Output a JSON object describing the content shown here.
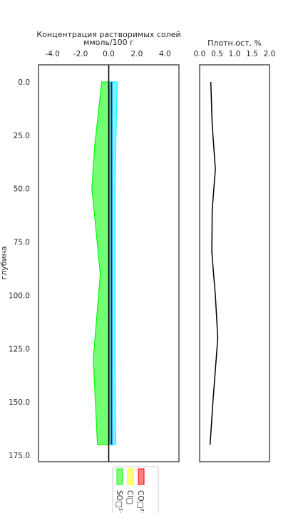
{
  "chart_data": [
    {
      "type": "area",
      "title": "Концентрация растворимых солей",
      "xlabel": "ммоль/100 г",
      "ylabel": "глубина",
      "x_axis_position": "top",
      "xlim": [
        -5.0,
        5.0
      ],
      "ylim": [
        178.0,
        -8.0
      ],
      "y_inverted": true,
      "xticks": [
        -4.0,
        -2.0,
        0.0,
        2.0,
        4.0
      ],
      "xtick_labels": [
        "-4.0",
        "-2.0",
        "0.0",
        "2.0",
        "4.0"
      ],
      "yticks": [
        0.0,
        25.0,
        50.0,
        75.0,
        100.0,
        125.0,
        150.0,
        175.0
      ],
      "ytick_labels": [
        "0.0",
        "25.0",
        "50.0",
        "75.0",
        "100.0",
        "125.0",
        "150.0",
        "175.0"
      ],
      "depth": [
        0,
        30,
        50,
        90,
        130,
        170
      ],
      "series": [
        {
          "name": "SO□²⁻□",
          "color": "#00ff00",
          "kind": "negative_fill",
          "values": [
            -0.5,
            -1.0,
            -1.2,
            -0.6,
            -1.1,
            -0.8
          ]
        },
        {
          "name": "Cl□",
          "color": "#ffff00",
          "kind": "thin_fill",
          "values": [
            0.1,
            0.1,
            0.1,
            0.1,
            0.1,
            0.1
          ]
        },
        {
          "name": "CO□²⁻",
          "color": "#ff0000",
          "kind": "thin_fill",
          "values": [
            0.05,
            0.05,
            0.05,
            0.05,
            0.05,
            0.05
          ]
        },
        {
          "name": "",
          "color": "#00ffff",
          "kind": "positive_fill",
          "values": [
            0.6,
            0.5,
            0.45,
            0.45,
            0.45,
            0.5
          ]
        },
        {
          "name": "",
          "color": "#0000ff",
          "kind": "line",
          "values": [
            0.2,
            0.2,
            0.2,
            0.2,
            0.2,
            0.2
          ]
        }
      ],
      "zero_line": true,
      "grid": false,
      "legend": {
        "placement": "bottom",
        "entries": [
          "SO□²⁻□",
          "Cl□",
          "CO□²⁻"
        ]
      }
    },
    {
      "type": "line",
      "title": "Плотн.ост, %",
      "x_axis_position": "top",
      "xlim": [
        0.0,
        2.0
      ],
      "xticks": [
        0.0,
        0.5,
        1.0,
        1.5,
        2.0
      ],
      "xtick_labels": [
        "0.0",
        "0.5",
        "1.0",
        "1.5",
        "2.0"
      ],
      "ylim": [
        178.0,
        -8.0
      ],
      "y_inverted": true,
      "color": "#000000",
      "x": [
        0.32,
        0.36,
        0.45,
        0.36,
        0.35,
        0.45,
        0.52,
        0.38,
        0.3
      ],
      "y": [
        0,
        20,
        41,
        60,
        80,
        100,
        120,
        150,
        170
      ],
      "grid": false
    }
  ]
}
